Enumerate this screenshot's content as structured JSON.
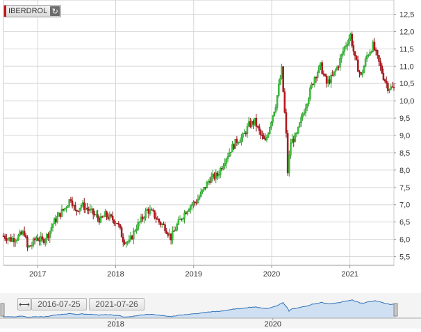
{
  "ticker": {
    "label": "IBERDROL",
    "refresh_icon": "refresh-icon",
    "accent": "#c0151b"
  },
  "range": {
    "from": "2016-07-25",
    "to": "2021-07-26"
  },
  "navigator": {
    "year_labels": [
      "2018",
      "2020"
    ]
  },
  "colors": {
    "up": "#3cc83c",
    "down": "#c0151b",
    "grid": "#d7d7d7",
    "nav_fill": "#cfe0f3",
    "nav_line": "#2f6fb5"
  },
  "chart_data": {
    "type": "candlestick",
    "title": "",
    "xlabel": "",
    "ylabel": "",
    "x_range": [
      "2016-07-25",
      "2021-07-26"
    ],
    "ylim": [
      5.25,
      12.75
    ],
    "yticks": [
      "5,5",
      "6,0",
      "6,5",
      "7,0",
      "7,5",
      "8,0",
      "8,5",
      "9,0",
      "9,5",
      "10,0",
      "10,5",
      "11,0",
      "11,5",
      "12,0",
      "12,5"
    ],
    "xticks": [
      "2017",
      "2018",
      "2019",
      "2020",
      "2021"
    ],
    "grid": true,
    "interval": "weekly",
    "closes": [
      [
        "2016-07-25",
        6.1
      ],
      [
        "2016-08-29",
        6.0
      ],
      [
        "2016-09-26",
        6.05
      ],
      [
        "2016-10-31",
        6.2
      ],
      [
        "2016-11-14",
        5.75
      ],
      [
        "2016-12-05",
        5.85
      ],
      [
        "2016-12-26",
        6.05
      ],
      [
        "2017-01-23",
        5.95
      ],
      [
        "2017-02-20",
        6.15
      ],
      [
        "2017-03-13",
        6.45
      ],
      [
        "2017-04-17",
        6.75
      ],
      [
        "2017-05-08",
        6.9
      ],
      [
        "2017-06-05",
        7.2
      ],
      [
        "2017-06-26",
        6.8
      ],
      [
        "2017-07-24",
        7.0
      ],
      [
        "2017-08-28",
        6.85
      ],
      [
        "2017-09-25",
        6.7
      ],
      [
        "2017-10-23",
        6.55
      ],
      [
        "2017-11-13",
        6.7
      ],
      [
        "2017-12-11",
        6.6
      ],
      [
        "2018-01-08",
        6.5
      ],
      [
        "2018-02-05",
        6.0
      ],
      [
        "2018-03-05",
        5.9
      ],
      [
        "2018-04-02",
        6.3
      ],
      [
        "2018-04-30",
        6.55
      ],
      [
        "2018-05-28",
        6.85
      ],
      [
        "2018-06-25",
        6.75
      ],
      [
        "2018-07-23",
        6.5
      ],
      [
        "2018-08-20",
        6.35
      ],
      [
        "2018-09-17",
        6.05
      ],
      [
        "2018-10-15",
        6.4
      ],
      [
        "2018-11-12",
        6.7
      ],
      [
        "2018-12-10",
        6.95
      ],
      [
        "2019-01-14",
        7.1
      ],
      [
        "2019-02-18",
        7.45
      ],
      [
        "2019-03-18",
        7.75
      ],
      [
        "2019-04-22",
        7.85
      ],
      [
        "2019-05-27",
        8.3
      ],
      [
        "2019-06-24",
        8.6
      ],
      [
        "2019-07-22",
        8.85
      ],
      [
        "2019-08-19",
        8.95
      ],
      [
        "2019-09-16",
        9.3
      ],
      [
        "2019-10-14",
        9.4
      ],
      [
        "2019-11-11",
        9.0
      ],
      [
        "2019-12-02",
        8.8
      ],
      [
        "2019-12-30",
        9.45
      ],
      [
        "2020-01-20",
        9.9
      ],
      [
        "2020-02-17",
        10.9
      ],
      [
        "2020-03-09",
        9.0
      ],
      [
        "2020-03-16",
        7.95
      ],
      [
        "2020-03-30",
        8.8
      ],
      [
        "2020-04-27",
        9.0
      ],
      [
        "2020-05-25",
        9.6
      ],
      [
        "2020-06-22",
        10.15
      ],
      [
        "2020-07-20",
        10.7
      ],
      [
        "2020-08-17",
        11.0
      ],
      [
        "2020-09-14",
        10.5
      ],
      [
        "2020-10-12",
        10.7
      ],
      [
        "2020-11-09",
        11.05
      ],
      [
        "2020-12-07",
        11.55
      ],
      [
        "2021-01-04",
        11.9
      ],
      [
        "2021-01-25",
        11.2
      ],
      [
        "2021-02-22",
        10.7
      ],
      [
        "2021-03-22",
        11.3
      ],
      [
        "2021-04-19",
        11.6
      ],
      [
        "2021-05-17",
        11.1
      ],
      [
        "2021-06-07",
        10.7
      ],
      [
        "2021-06-28",
        10.4
      ],
      [
        "2021-07-26",
        10.35
      ]
    ]
  }
}
